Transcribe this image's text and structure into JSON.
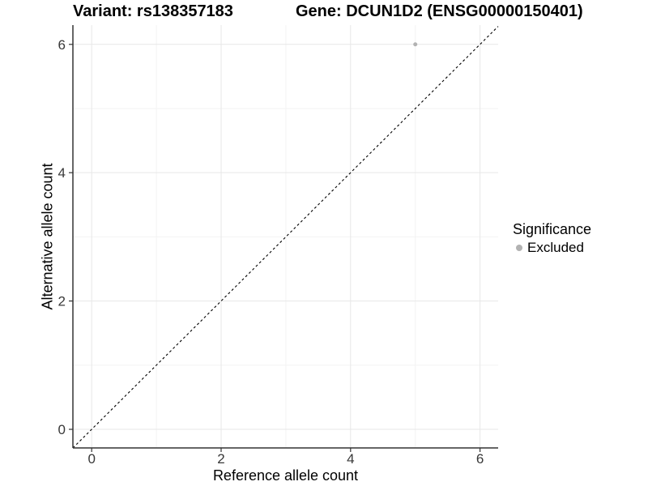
{
  "chart_data": {
    "type": "scatter",
    "title_left": "Variant: rs138357183",
    "title_right": "Gene: DCUN1D2 (ENSG00000150401)",
    "xlabel": "Reference allele count",
    "ylabel": "Alternative allele count",
    "xticks": [
      0,
      2,
      4,
      6
    ],
    "yticks": [
      0,
      2,
      4,
      6
    ],
    "xminor": [
      1,
      3,
      5
    ],
    "yminor": [
      1,
      3,
      5
    ],
    "xlim": [
      -0.29,
      6.28
    ],
    "ylim": [
      -0.29,
      6.3
    ],
    "grid": {
      "major_color": "#e7e7e7",
      "minor_color": "#f3f3f3"
    },
    "identity_line": {
      "present": true,
      "style": "dashed",
      "color": "#000000"
    },
    "series": [
      {
        "name": "Excluded",
        "color": "#b2b2b2",
        "points": [
          {
            "x": 5,
            "y": 6
          }
        ]
      }
    ],
    "legend": {
      "title": "Significance",
      "position": "right",
      "items": [
        {
          "label": "Excluded",
          "color": "#b2b2b2"
        }
      ]
    },
    "axis": {
      "line_color": "#333333",
      "tick_color": "#333333",
      "tick_label_color": "#383838"
    }
  }
}
